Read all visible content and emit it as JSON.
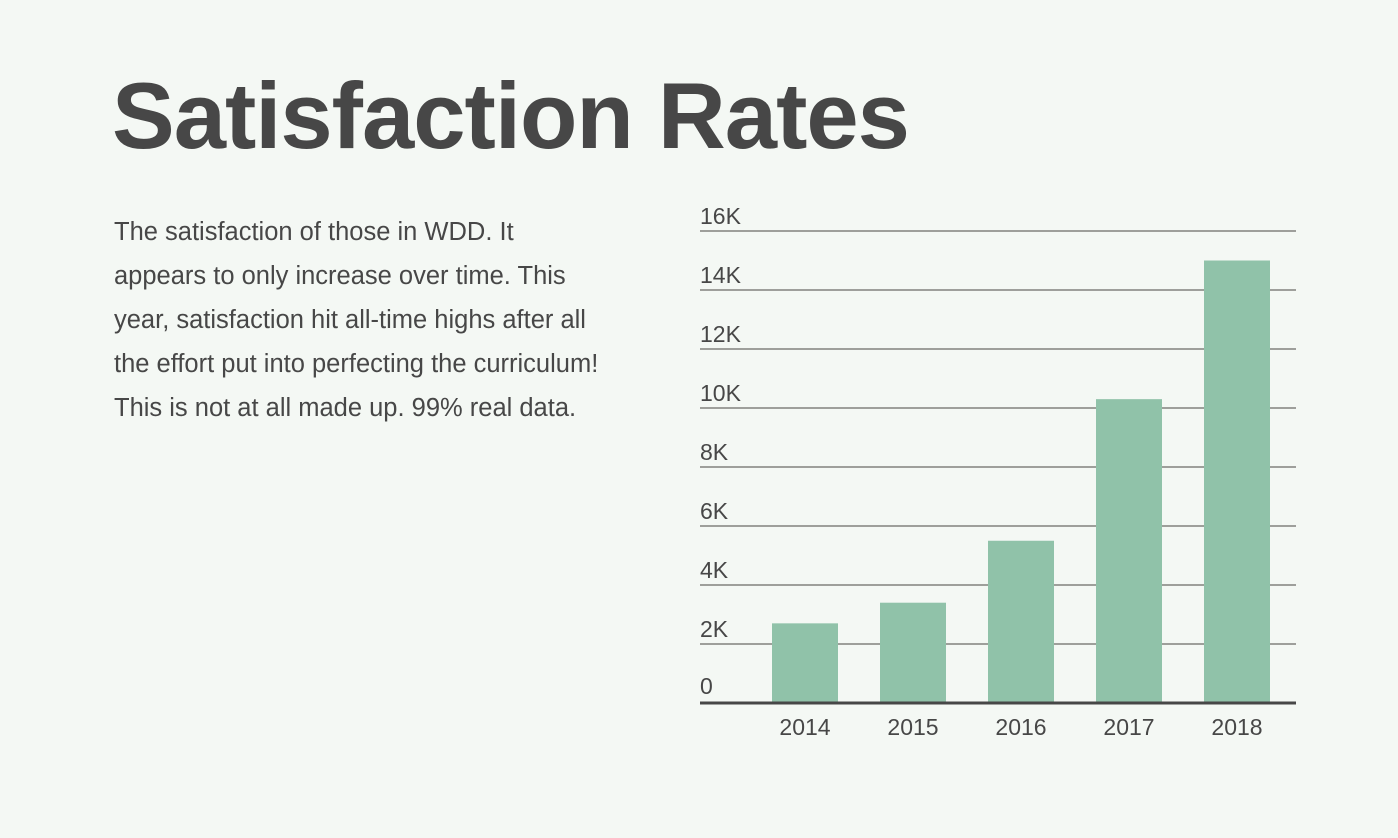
{
  "page": {
    "title": "Satisfaction Rates",
    "description": "The satisfaction of those in WDD. It appears to only increase over time. This year, satisfaction hit all-time highs after all the effort put into perfecting the curriculum! This is not at all made up. 99% real data."
  },
  "colors": {
    "background": "#f4f8f4",
    "text": "#474747",
    "bar": "#90c2a9",
    "gridline": "#9e9f9b",
    "baseline": "#474747"
  },
  "chart_data": {
    "type": "bar",
    "title": "",
    "xlabel": "",
    "ylabel": "",
    "categories": [
      "2014",
      "2015",
      "2016",
      "2017",
      "2018"
    ],
    "values": [
      2700,
      3400,
      5500,
      10300,
      15000
    ],
    "ylim": [
      0,
      16000
    ],
    "yticks": [
      0,
      2000,
      4000,
      6000,
      8000,
      10000,
      12000,
      14000,
      16000
    ],
    "ytick_labels": [
      "0",
      "2K",
      "4K",
      "6K",
      "8K",
      "10K",
      "12K",
      "14K",
      "16K"
    ],
    "grid": true,
    "legend": "none"
  }
}
